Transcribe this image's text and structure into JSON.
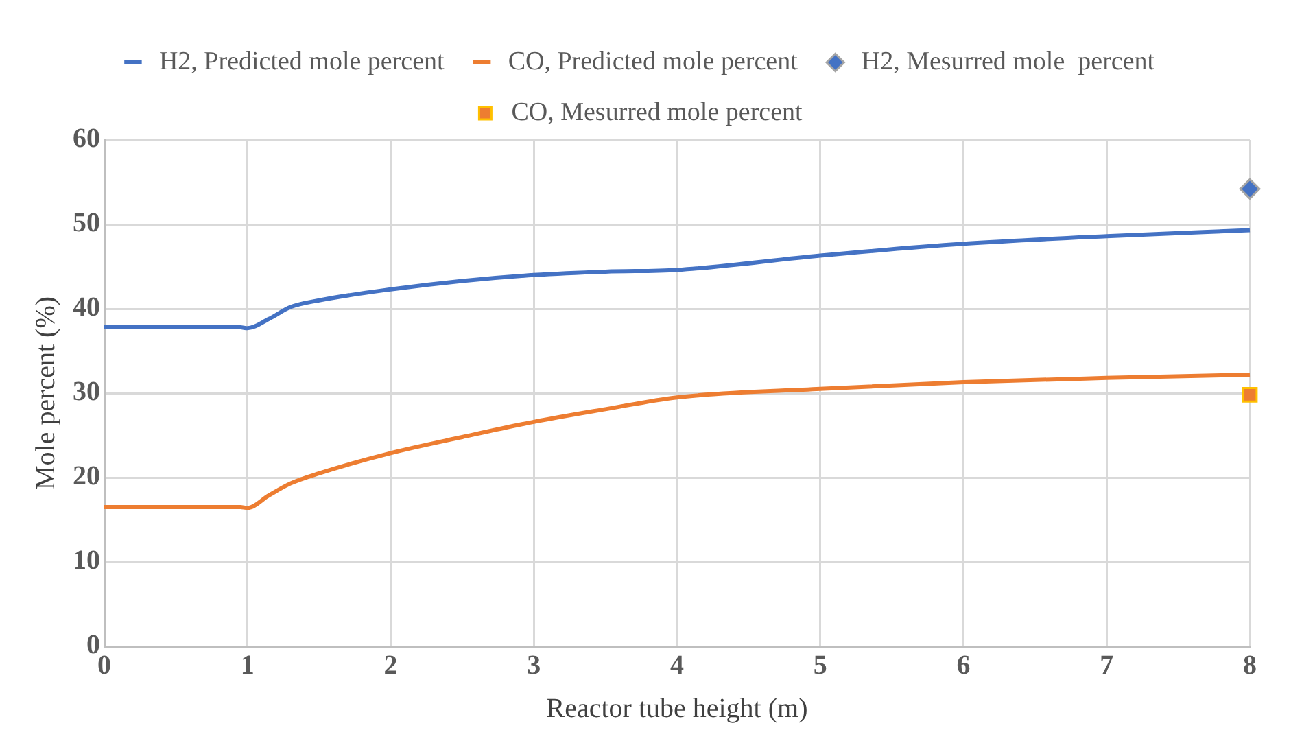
{
  "chart_data": {
    "type": "line",
    "xlabel": "Reactor tube height (m)",
    "ylabel": "Mole percent (%)",
    "xlim": [
      0,
      8
    ],
    "xticks": [
      0,
      1,
      2,
      3,
      4,
      5,
      6,
      7,
      8
    ],
    "ylim": [
      0,
      60
    ],
    "yticks": [
      0,
      10,
      20,
      30,
      40,
      50,
      60
    ],
    "grid": true,
    "legend": "top",
    "line_style": "solid",
    "series": [
      {
        "name": "H2, Predicted mole percent",
        "color": "#4472c4",
        "type": "line",
        "marker": "none",
        "x": [
          0,
          0.5,
          0.95,
          1,
          1.15,
          1.3,
          1.5,
          2,
          2.5,
          3,
          3.5,
          4,
          5,
          6,
          7,
          8
        ],
        "values": [
          37.8,
          37.8,
          37.8,
          37.7,
          38.8,
          40.2,
          41,
          42.3,
          43.3,
          44,
          44.4,
          44.6,
          46.3,
          47.7,
          48.6,
          49.3
        ]
      },
      {
        "name": "CO, Predicted mole percent",
        "color": "#ed7d31",
        "type": "line",
        "marker": "none",
        "x": [
          0,
          0.5,
          0.95,
          1,
          1.15,
          1.3,
          1.5,
          2,
          2.5,
          3,
          3.5,
          4,
          5,
          6,
          7,
          8
        ],
        "values": [
          16.5,
          16.5,
          16.5,
          16.4,
          17.9,
          19.3,
          20.5,
          22.9,
          24.8,
          26.6,
          28.1,
          29.5,
          30.5,
          31.3,
          31.8,
          32.2
        ]
      },
      {
        "name": "H2, Mesurred mole  percent",
        "color": "#4472c4",
        "type": "scatter",
        "marker": "diamond",
        "x": [
          8
        ],
        "values": [
          54.2
        ]
      },
      {
        "name": "CO, Mesurred mole percent",
        "color": "#ed7d31",
        "type": "scatter",
        "marker": "square",
        "x": [
          8
        ],
        "values": [
          29.8
        ]
      }
    ]
  }
}
